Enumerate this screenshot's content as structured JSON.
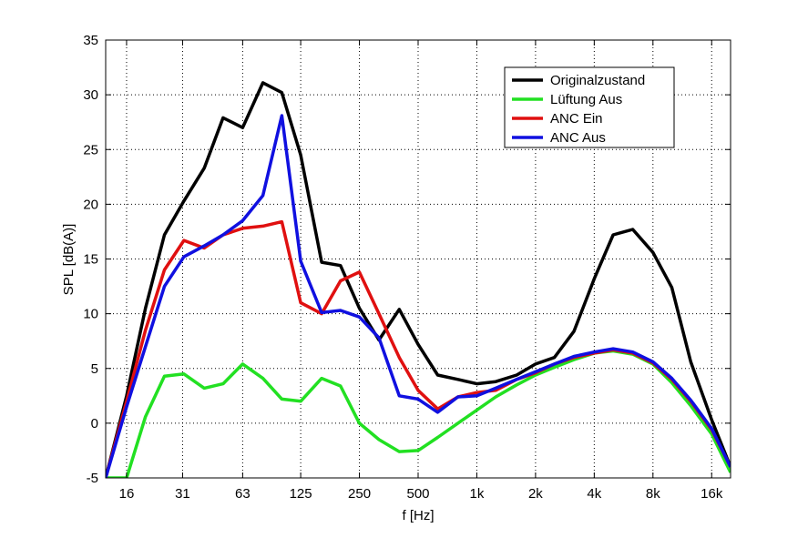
{
  "chart_data": {
    "type": "line",
    "xlabel": "f [Hz]",
    "ylabel": "SPL [dB(A)]",
    "x_scale": "log",
    "xlim": [
      12.5,
      20000
    ],
    "ylim": [
      -5,
      35
    ],
    "y_ticks": [
      -5,
      0,
      5,
      10,
      15,
      20,
      25,
      30,
      35
    ],
    "x_tick_values": [
      16,
      31,
      63,
      125,
      250,
      500,
      1000,
      2000,
      4000,
      8000,
      16000
    ],
    "x_tick_labels": [
      "16",
      "31",
      "63",
      "125",
      "250",
      "500",
      "1k",
      "2k",
      "4k",
      "8k",
      "16k"
    ],
    "grid": true,
    "legend_position": "top-right",
    "x": [
      12.5,
      16,
      20,
      25,
      31.5,
      40,
      50,
      63,
      80,
      100,
      125,
      160,
      200,
      250,
      315,
      400,
      500,
      630,
      800,
      1000,
      1250,
      1600,
      2000,
      2500,
      3150,
      4000,
      5000,
      6300,
      8000,
      10000,
      12500,
      16000,
      20000
    ],
    "series": [
      {
        "name": "Originalzustand",
        "color": "#000000",
        "values": [
          -5,
          2.5,
          10.5,
          17.2,
          20.3,
          23.3,
          27.9,
          27.0,
          31.1,
          30.2,
          24.5,
          14.7,
          14.4,
          10.5,
          7.6,
          10.4,
          7.2,
          4.4,
          4.0,
          3.6,
          3.8,
          4.4,
          5.4,
          6.0,
          8.4,
          13.2,
          17.2,
          17.7,
          15.6,
          12.4,
          5.6,
          0.3,
          -4.0
        ]
      },
      {
        "name": "Lüftung Aus",
        "color": "#22e022",
        "values": [
          -5,
          -5,
          0.6,
          4.3,
          4.5,
          3.2,
          3.6,
          5.4,
          4.1,
          2.2,
          2.0,
          4.1,
          3.4,
          0.0,
          -1.5,
          -2.6,
          -2.5,
          -1.3,
          0.0,
          1.2,
          2.4,
          3.5,
          4.4,
          5.1,
          5.8,
          6.4,
          6.6,
          6.3,
          5.4,
          3.7,
          1.6,
          -1.0,
          -4.5
        ]
      },
      {
        "name": "ANC Ein",
        "color": "#e01010",
        "values": [
          -5,
          2.0,
          8.5,
          14.0,
          16.7,
          16.0,
          17.2,
          17.8,
          18.0,
          18.4,
          11.0,
          10.0,
          13.0,
          13.8,
          10.0,
          6.0,
          3.0,
          1.3,
          2.4,
          2.8,
          3.0,
          4.0,
          4.6,
          5.4,
          6.0,
          6.4,
          6.7,
          6.4,
          5.5,
          4.0,
          2.0,
          -0.6,
          -4.0
        ]
      },
      {
        "name": "ANC Aus",
        "color": "#1010e0",
        "values": [
          -5,
          1.5,
          7.0,
          12.5,
          15.2,
          16.2,
          17.2,
          18.5,
          20.8,
          28.1,
          14.8,
          10.1,
          10.3,
          9.7,
          7.8,
          2.5,
          2.2,
          1.0,
          2.4,
          2.5,
          3.2,
          4.0,
          4.7,
          5.4,
          6.1,
          6.5,
          6.8,
          6.5,
          5.6,
          4.1,
          2.1,
          -0.5,
          -4.0
        ]
      }
    ]
  }
}
